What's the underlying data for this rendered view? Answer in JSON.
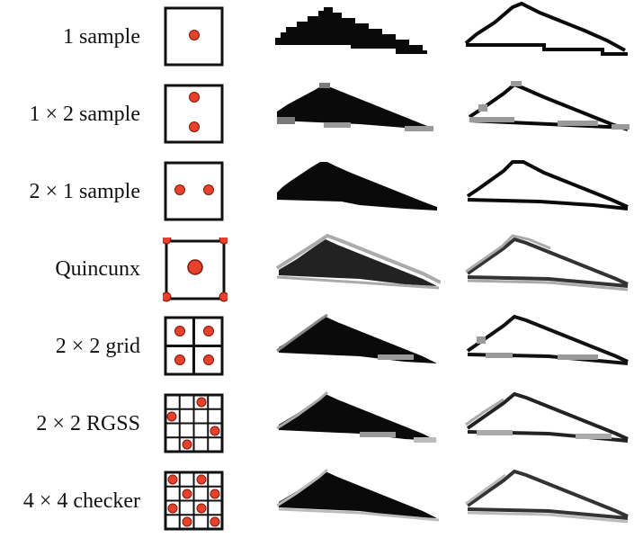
{
  "rows": [
    {
      "label": "1 sample"
    },
    {
      "label": "1 × 2  sample"
    },
    {
      "label": "2 × 1 sample"
    },
    {
      "label": "Quincunx"
    },
    {
      "label": "2 × 2 grid"
    },
    {
      "label": "2 × 2 RGSS"
    },
    {
      "label": "4 × 4 checker"
    }
  ],
  "colors": {
    "sample_dot": "#e8412b",
    "ink": "#111111",
    "gray": "#9a9a9a"
  }
}
